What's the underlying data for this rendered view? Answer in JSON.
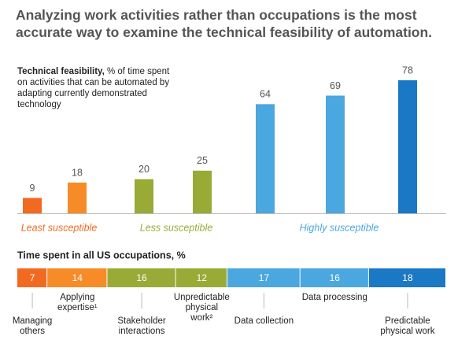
{
  "chart_data": [
    {
      "type": "bar",
      "title": "Analyzing work activities rather than occupations is the most accurate way to examine the technical feasibility of automation.",
      "subtitle_bold": "Technical feasibility,",
      "subtitle": "% of time spent on activities that can be automated by adapting currently demonstrated technology",
      "series": [
        {
          "name": "Least susceptible",
          "color": "#f26a21",
          "colors": [
            "#f26a21",
            "#f68b28"
          ],
          "values": [
            9,
            18
          ]
        },
        {
          "name": "Less susceptible",
          "color": "#99aa36",
          "colors": [
            "#99aa36",
            "#99aa36"
          ],
          "values": [
            20,
            25
          ]
        },
        {
          "name": "Highly susceptible",
          "color": "#4aa7df",
          "colors": [
            "#4aa7df",
            "#4aa7df",
            "#1a78c5"
          ],
          "values": [
            64,
            69,
            78
          ]
        }
      ],
      "ylim": [
        0,
        78
      ]
    },
    {
      "type": "stacked_bar",
      "title": "Time spent in all US occupations, %",
      "categories": [
        [
          "Managing",
          "others"
        ],
        [
          "Applying",
          "expertise¹"
        ],
        [
          "Stakeholder",
          "interactions"
        ],
        [
          "Unpredictable",
          "physical",
          "work²"
        ],
        [
          "Data collection"
        ],
        [
          "Data processing"
        ],
        [
          "Predictable",
          "physical work"
        ]
      ],
      "values": [
        7,
        14,
        16,
        12,
        17,
        16,
        18
      ],
      "colors": [
        "#f26a21",
        "#f68b28",
        "#99aa36",
        "#99aa36",
        "#4aa7df",
        "#4aa7df",
        "#1a78c5"
      ],
      "xlim": [
        0,
        100
      ]
    }
  ]
}
